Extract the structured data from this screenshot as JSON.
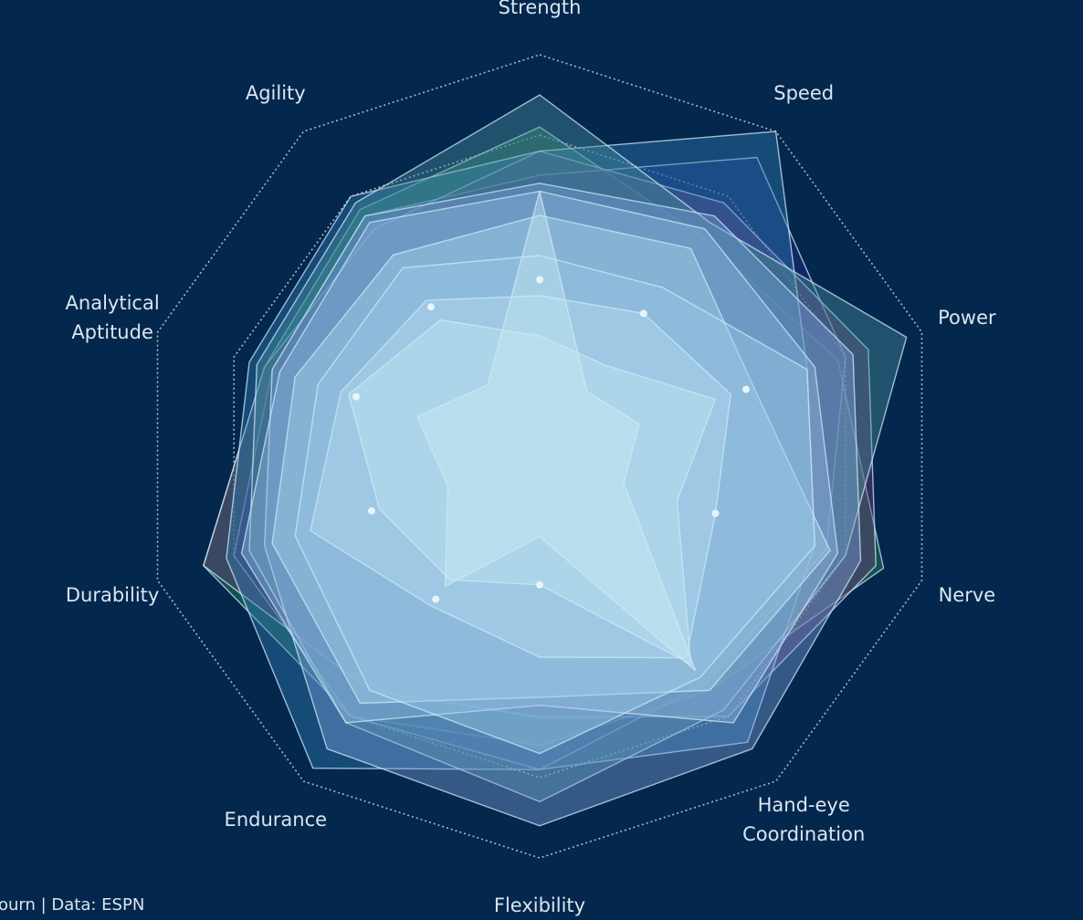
{
  "chart_data": {
    "type": "radar",
    "axes": [
      "Strength",
      "Speed",
      "Power",
      "Nerve",
      "Hand-eye Coordination",
      "Flexibility",
      "Endurance",
      "Durability",
      "Analytical Aptitude",
      "Agility"
    ],
    "axis_label_lines": [
      [
        "Strength"
      ],
      [
        "Speed"
      ],
      [
        "Power"
      ],
      [
        "Nerve"
      ],
      [
        "Hand-eye",
        "Coordination"
      ],
      [
        "Flexibility"
      ],
      [
        "Endurance"
      ],
      [
        "Durability"
      ],
      [
        "Analytical",
        "Aptitude"
      ],
      [
        "Agility"
      ]
    ],
    "rlim": [
      0,
      100
    ],
    "rings": [
      20,
      40,
      60,
      80,
      100
    ],
    "grid": true,
    "series": [
      {
        "color": "#2e8b57",
        "values": [
          82,
          68,
          78,
          90,
          72,
          72,
          80,
          88,
          72,
          76
        ]
      },
      {
        "color": "#1f2e8a",
        "values": [
          70,
          92,
          80,
          75,
          70,
          78,
          80,
          80,
          70,
          74
        ]
      },
      {
        "color": "#6e3f7a",
        "values": [
          76,
          78,
          86,
          88,
          80,
          65,
          72,
          88,
          72,
          70
        ]
      },
      {
        "color": "#2f7fb6",
        "values": [
          76,
          100,
          70,
          72,
          88,
          78,
          96,
          82,
          76,
          80
        ]
      },
      {
        "color": "#4a8f9a",
        "values": [
          90,
          72,
          96,
          80,
          78,
          86,
          82,
          76,
          74,
          78
        ]
      },
      {
        "color": "#7aa0d8",
        "values": [
          68,
          74,
          82,
          84,
          90,
          92,
          90,
          72,
          70,
          74
        ]
      },
      {
        "color": "#8fb8e0",
        "values": [
          66,
          70,
          72,
          78,
          82,
          62,
          82,
          78,
          68,
          72
        ]
      },
      {
        "color": "#a8d4ea",
        "values": [
          60,
          64,
          56,
          76,
          72,
          60,
          76,
          70,
          64,
          62
        ]
      },
      {
        "color": "#9cc9e6",
        "values": [
          50,
          52,
          70,
          72,
          68,
          74,
          72,
          64,
          58,
          58
        ]
      },
      {
        "color": "#b4dcef",
        "values": [
          40,
          44,
          50,
          46,
          62,
          50,
          46,
          60,
          52,
          48
        ]
      },
      {
        "color": "#c2e6f2",
        "values": [
          30,
          28,
          46,
          36,
          64,
          32,
          38,
          42,
          50,
          42
        ]
      },
      {
        "color": "#c9edf3",
        "values": [
          66,
          20,
          26,
          22,
          66,
          20,
          40,
          24,
          32,
          22
        ]
      }
    ],
    "markers": [
      {
        "axis": 0,
        "value": 44
      },
      {
        "axis": 1,
        "value": 44
      },
      {
        "axis": 2,
        "value": 54
      },
      {
        "axis": 3,
        "value": 46
      },
      {
        "axis": 5,
        "value": 32
      },
      {
        "axis": 6,
        "value": 44
      },
      {
        "axis": 7,
        "value": 44
      },
      {
        "axis": 8,
        "value": 48
      },
      {
        "axis": 9,
        "value": 46
      }
    ]
  },
  "footer": {
    "credit": "ourn | Data: ESPN"
  },
  "style": {
    "background": "#04274d",
    "grid_color": "#c7d3dd",
    "label_color": "#d9e6ef",
    "outline_color": "#cfe8f5",
    "marker_color": "#e8f4fb"
  }
}
